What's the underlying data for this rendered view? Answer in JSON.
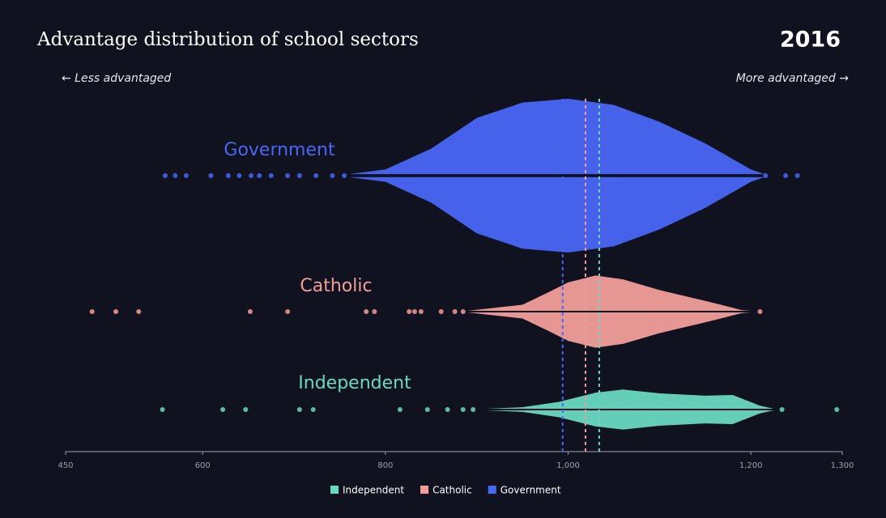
{
  "chart_data": {
    "type": "beeswarm",
    "title": "Advantage distribution of school sectors",
    "year": "2016",
    "annotations": [
      "← Less advantaged",
      "More advantaged →"
    ],
    "xlim": [
      450,
      1300
    ],
    "xticks": [
      450,
      600,
      800,
      {
        "value": 1000,
        "label": "1,000"
      },
      {
        "value": 1200,
        "label": "1,200"
      },
      {
        "value": 1300,
        "label": "1,300"
      }
    ],
    "series": [
      {
        "name": "Government",
        "color": "#4a66f5",
        "mean": 994,
        "values": [
          559,
          570,
          582,
          609,
          628,
          640,
          653,
          662,
          675,
          693,
          706,
          724,
          742,
          755,
          1216,
          1238,
          1251
        ],
        "density": {
          "x": [
            760,
            800,
            850,
            900,
            950,
            1000,
            1050,
            1100,
            1150,
            1200,
            1215
          ],
          "y": [
            0.02,
            0.08,
            0.35,
            0.75,
            0.95,
            1.0,
            0.92,
            0.7,
            0.42,
            0.08,
            0.02
          ]
        }
      },
      {
        "name": "Catholic",
        "color": "#f29e9a",
        "mean": 1019,
        "values": [
          479,
          505,
          530,
          652,
          693,
          779,
          788,
          826,
          832,
          839,
          861,
          876,
          885,
          1210
        ],
        "density": {
          "x": [
            890,
            950,
            980,
            1000,
            1030,
            1060,
            1100,
            1150,
            1190,
            1200
          ],
          "y": [
            0.01,
            0.09,
            0.26,
            0.38,
            0.47,
            0.42,
            0.28,
            0.14,
            0.02,
            0.01
          ]
        }
      },
      {
        "name": "Independent",
        "color": "#6ad9c2",
        "mean": 1034,
        "values": [
          556,
          622,
          647,
          706,
          721,
          816,
          846,
          868,
          885,
          896,
          1234,
          1294
        ],
        "density": {
          "x": [
            910,
            950,
            990,
            1030,
            1060,
            1100,
            1150,
            1180,
            1210,
            1225
          ],
          "y": [
            0.01,
            0.03,
            0.1,
            0.22,
            0.26,
            0.21,
            0.18,
            0.19,
            0.05,
            0.01
          ]
        }
      }
    ]
  }
}
